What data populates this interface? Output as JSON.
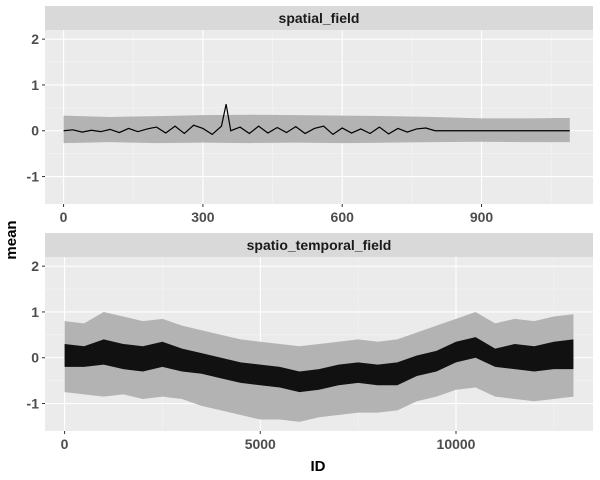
{
  "chart_data": [
    {
      "type": "line",
      "panel": "spatial_field",
      "ylabel": "mean",
      "xlim": [
        -40,
        1140
      ],
      "ylim": [
        -1.6,
        2.2
      ],
      "x_ticks": [
        0,
        300,
        600,
        900
      ],
      "x_tick_labels": [
        "0",
        "300",
        "600",
        "900"
      ],
      "y_ticks": [
        -1,
        0,
        1,
        2
      ],
      "y_tick_labels": [
        "-1",
        "0",
        "1",
        "2"
      ],
      "grid": true,
      "series": [
        {
          "role": "mean",
          "color": "#000000",
          "x": [
            0,
            20,
            40,
            60,
            80,
            100,
            120,
            140,
            160,
            180,
            200,
            220,
            240,
            260,
            280,
            300,
            320,
            340,
            350,
            360,
            380,
            400,
            420,
            440,
            460,
            480,
            500,
            520,
            540,
            560,
            580,
            600,
            620,
            640,
            660,
            680,
            700,
            720,
            740,
            760,
            780,
            800,
            900,
            1000,
            1090
          ],
          "values": [
            0.0,
            0.02,
            -0.03,
            0.01,
            -0.02,
            0.03,
            -0.04,
            0.05,
            -0.02,
            0.04,
            0.08,
            -0.05,
            0.1,
            -0.06,
            0.12,
            0.05,
            -0.08,
            0.1,
            0.58,
            0.0,
            0.08,
            -0.06,
            0.1,
            -0.05,
            0.07,
            -0.04,
            0.09,
            -0.06,
            0.05,
            0.1,
            -0.08,
            0.06,
            -0.05,
            0.04,
            -0.06,
            0.08,
            -0.07,
            0.05,
            -0.03,
            0.04,
            0.06,
            0.0,
            0.0,
            0.0,
            0.0
          ]
        },
        {
          "role": "interval",
          "color": "#b3b3b3",
          "x": [
            0,
            100,
            200,
            300,
            400,
            500,
            600,
            700,
            800,
            900,
            1000,
            1090
          ],
          "lower": [
            -0.27,
            -0.25,
            -0.27,
            -0.26,
            -0.27,
            -0.26,
            -0.27,
            -0.26,
            -0.25,
            -0.24,
            -0.25,
            -0.25
          ],
          "upper": [
            0.33,
            0.3,
            0.32,
            0.34,
            0.35,
            0.34,
            0.33,
            0.32,
            0.3,
            0.27,
            0.27,
            0.28
          ]
        }
      ]
    },
    {
      "type": "line",
      "panel": "spatio_temporal_field",
      "xlabel": "ID",
      "ylabel": "mean",
      "xlim": [
        -500,
        13500
      ],
      "ylim": [
        -1.6,
        2.2
      ],
      "x_ticks": [
        0,
        5000,
        10000
      ],
      "x_tick_labels": [
        "0",
        "5000",
        "10000"
      ],
      "y_ticks": [
        -1,
        0,
        1,
        2
      ],
      "y_tick_labels": [
        "-1",
        "0",
        "1",
        "2"
      ],
      "grid": true,
      "series": [
        {
          "role": "mean-range",
          "color": "#111111",
          "x": [
            0,
            500,
            1000,
            1500,
            2000,
            2500,
            3000,
            3500,
            4000,
            4500,
            5000,
            5500,
            6000,
            6500,
            7000,
            7500,
            8000,
            8500,
            9000,
            9500,
            10000,
            10500,
            11000,
            11500,
            12000,
            12500,
            13000
          ],
          "lower": [
            -0.2,
            -0.2,
            -0.15,
            -0.25,
            -0.3,
            -0.2,
            -0.3,
            -0.35,
            -0.45,
            -0.55,
            -0.6,
            -0.65,
            -0.75,
            -0.7,
            -0.6,
            -0.55,
            -0.6,
            -0.6,
            -0.4,
            -0.3,
            -0.1,
            0.0,
            -0.2,
            -0.25,
            -0.3,
            -0.25,
            -0.25
          ],
          "upper": [
            0.3,
            0.25,
            0.4,
            0.3,
            0.25,
            0.35,
            0.2,
            0.1,
            0.0,
            -0.1,
            -0.15,
            -0.2,
            -0.3,
            -0.25,
            -0.15,
            -0.1,
            -0.15,
            -0.1,
            0.05,
            0.15,
            0.35,
            0.45,
            0.2,
            0.3,
            0.25,
            0.35,
            0.4
          ]
        },
        {
          "role": "interval",
          "color": "#b3b3b3",
          "x": [
            0,
            500,
            1000,
            1500,
            2000,
            2500,
            3000,
            3500,
            4000,
            4500,
            5000,
            5500,
            6000,
            6500,
            7000,
            7500,
            8000,
            8500,
            9000,
            9500,
            10000,
            10500,
            11000,
            11500,
            12000,
            12500,
            13000
          ],
          "lower": [
            -0.75,
            -0.8,
            -0.85,
            -0.8,
            -0.9,
            -0.85,
            -0.9,
            -1.05,
            -1.15,
            -1.25,
            -1.35,
            -1.35,
            -1.4,
            -1.3,
            -1.25,
            -1.2,
            -1.2,
            -1.15,
            -0.95,
            -0.85,
            -0.7,
            -0.65,
            -0.85,
            -0.9,
            -0.95,
            -0.9,
            -0.85
          ],
          "upper": [
            0.8,
            0.75,
            1.0,
            0.9,
            0.8,
            0.85,
            0.7,
            0.6,
            0.5,
            0.4,
            0.35,
            0.3,
            0.25,
            0.3,
            0.35,
            0.4,
            0.35,
            0.4,
            0.55,
            0.7,
            0.85,
            1.0,
            0.75,
            0.85,
            0.8,
            0.9,
            0.95
          ]
        }
      ]
    }
  ]
}
